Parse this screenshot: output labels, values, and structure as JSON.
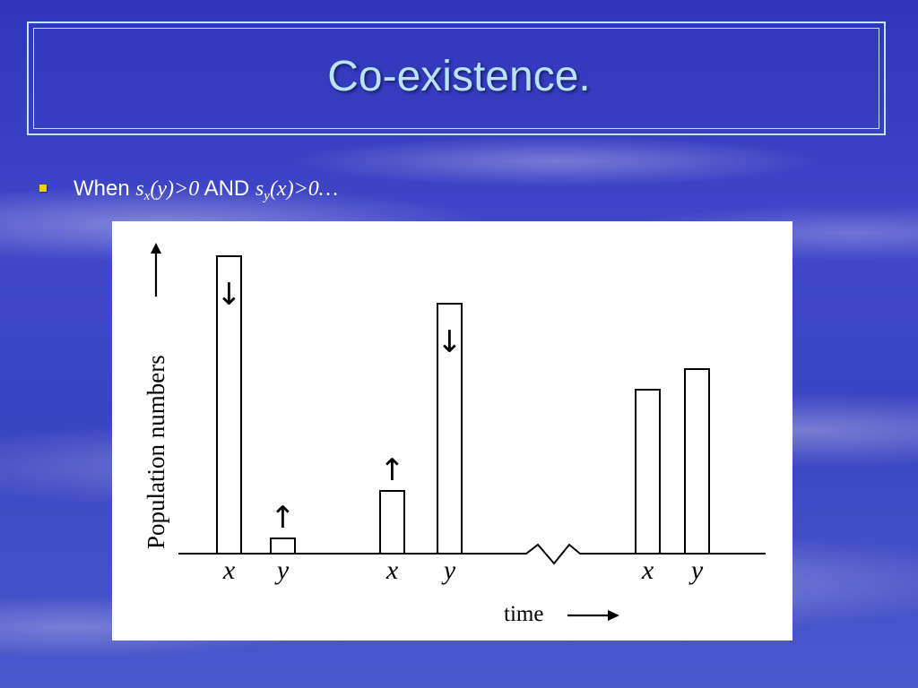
{
  "slide": {
    "title": "Co-existence.",
    "bullet": {
      "prefix": "When",
      "cond1_s": "s",
      "cond1_sub": "x",
      "cond1_rest": "(y)>0",
      "conjunction": "AND",
      "cond2_s": "s",
      "cond2_sub": "y",
      "cond2_rest": "(x)>0…"
    }
  },
  "colors": {
    "bullet_marker": "#f2d000",
    "title": "#b9e4f7"
  },
  "figure": {
    "y_axis_label": "Population numbers",
    "x_axis_label": "time",
    "up_arrow": "↑",
    "down_arrow": "↓",
    "groups": [
      {
        "bars": [
          {
            "label": "x",
            "value": 100,
            "trend": "down"
          },
          {
            "label": "y",
            "value": 5,
            "trend": "up"
          }
        ]
      },
      {
        "bars": [
          {
            "label": "x",
            "value": 21,
            "trend": "up"
          },
          {
            "label": "y",
            "value": 84,
            "trend": "down"
          }
        ]
      },
      {
        "bars": [
          {
            "label": "x",
            "value": 55,
            "trend": "none"
          },
          {
            "label": "y",
            "value": 62,
            "trend": "none"
          }
        ]
      }
    ]
  }
}
